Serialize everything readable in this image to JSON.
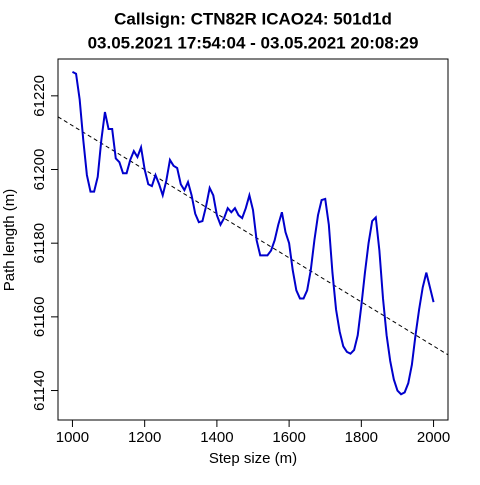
{
  "chart_data": {
    "type": "line",
    "title": "Callsign: CTN82R    ICAO24: 501d1d",
    "subtitle": "03.05.2021 17:54:04 - 03.05.2021 20:08:29",
    "x_label": "Step size (m)",
    "y_label": "Path length (m)",
    "xlim": [
      960,
      2040
    ],
    "ylim": [
      61132,
      61230
    ],
    "xticks": [
      1000,
      1200,
      1400,
      1600,
      1800,
      2000
    ],
    "yticks": [
      61140,
      61160,
      61180,
      61200,
      61220
    ],
    "series": [
      {
        "color": "#0000cc",
        "x": [
          1000,
          1010,
          1020,
          1030,
          1040,
          1050,
          1060,
          1070,
          1080,
          1090,
          1100,
          1110,
          1120,
          1130,
          1140,
          1150,
          1160,
          1170,
          1180,
          1190,
          1200,
          1210,
          1220,
          1230,
          1240,
          1250,
          1260,
          1270,
          1280,
          1290,
          1300,
          1310,
          1320,
          1330,
          1340,
          1350,
          1360,
          1370,
          1380,
          1390,
          1400,
          1410,
          1420,
          1430,
          1440,
          1450,
          1460,
          1470,
          1480,
          1490,
          1500,
          1510,
          1520,
          1530,
          1540,
          1550,
          1560,
          1570,
          1580,
          1590,
          1600,
          1610,
          1620,
          1630,
          1640,
          1650,
          1660,
          1670,
          1680,
          1690,
          1700,
          1710,
          1720,
          1730,
          1740,
          1750,
          1760,
          1770,
          1780,
          1790,
          1800,
          1810,
          1820,
          1830,
          1840,
          1850,
          1860,
          1870,
          1880,
          1890,
          1900,
          1910,
          1920,
          1930,
          1940,
          1950,
          1960,
          1970,
          1980,
          1990,
          2000
        ],
        "values": [
          61226.5,
          61226,
          61219,
          61208,
          61198.5,
          61194,
          61194,
          61198,
          61208,
          61215.6,
          61211,
          61211,
          61203,
          61202,
          61199,
          61199,
          61202.6,
          61205,
          61203.4,
          61206,
          61200,
          61196,
          61195.5,
          61198.5,
          61196,
          61193,
          61197,
          61202.6,
          61201,
          61200.4,
          61196,
          61194.4,
          61196.6,
          61193,
          61188,
          61185.7,
          61186,
          61190,
          61195,
          61193,
          61187.6,
          61185,
          61186.8,
          61189.5,
          61188.4,
          61189.5,
          61187.6,
          61186.8,
          61189.5,
          61193,
          61189,
          61180.8,
          61176.7,
          61176.7,
          61176.7,
          61178,
          61180.8,
          61185,
          61188.4,
          61183,
          61180,
          61172.7,
          61167.2,
          61165,
          61165,
          61167.2,
          61172.7,
          61180.8,
          61187.6,
          61191.7,
          61192,
          61185,
          61172,
          61162,
          61156,
          61152,
          61150.5,
          61150,
          61151,
          61155,
          61163,
          61172,
          61180,
          61186,
          61187,
          61178,
          61165,
          61155,
          61148,
          61143,
          61140,
          61139,
          61139.5,
          61142,
          61147,
          61155,
          61162,
          61168,
          61172,
          61168,
          61164
        ]
      }
    ],
    "trend_line": {
      "x": [
        960,
        2040
      ],
      "values": [
        61214.3,
        61149.7
      ],
      "color": "#000000",
      "dashed": true
    }
  }
}
